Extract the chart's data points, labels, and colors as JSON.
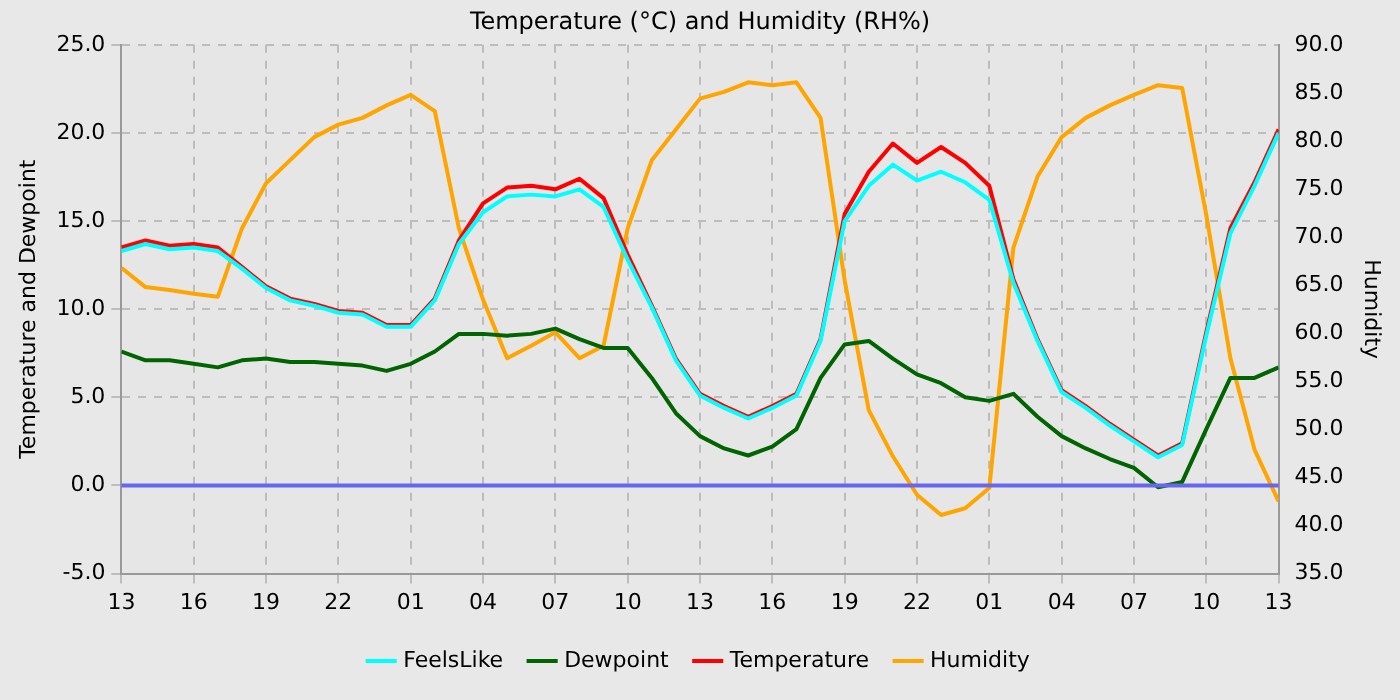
{
  "chart_data": {
    "type": "line",
    "title": "Temperature (°C) and Humidity (RH%)",
    "ylabel": "Temperature and Dewpoint",
    "y2label": "Humidity",
    "x": [
      "--01-01T13:00",
      "--01-01T14:00",
      "--01-01T15:00",
      "--01-01T16:00",
      "--01-01T17:00",
      "--01-01T18:00",
      "--01-01T19:00",
      "--01-01T20:00",
      "--01-01T21:00",
      "--01-01T22:00",
      "--01-01T23:00",
      "--01-02T00:00",
      "--01-02T01:00",
      "--01-02T02:00",
      "--01-02T03:00",
      "--01-02T04:00",
      "--01-02T05:00",
      "--01-02T06:00",
      "--01-02T07:00",
      "--01-02T08:00",
      "--01-02T09:00",
      "--01-02T10:00",
      "--01-02T11:00",
      "--01-02T12:00",
      "--01-02T13:00",
      "--01-02T14:00",
      "--01-02T15:00",
      "--01-02T16:00",
      "--01-02T17:00",
      "--01-02T18:00",
      "--01-02T19:00",
      "--01-02T20:00",
      "--01-02T21:00",
      "--01-02T22:00",
      "--01-02T23:00",
      "--01-03T00:00",
      "--01-03T01:00",
      "--01-03T02:00",
      "--01-03T03:00",
      "--01-03T04:00",
      "--01-03T05:00",
      "--01-03T06:00",
      "--01-03T07:00",
      "--01-03T08:00",
      "--01-03T09:00",
      "--01-03T10:00",
      "--01-03T11:00",
      "--01-03T12:00",
      "--01-03T13:00"
    ],
    "series": [
      {
        "name": "FeelsLike",
        "color": "#00ffff",
        "values": [
          13.3,
          13.7,
          13.4,
          13.5,
          13.3,
          12.3,
          11.2,
          10.5,
          10.2,
          9.8,
          9.7,
          9.0,
          9.0,
          10.5,
          13.7,
          15.5,
          16.4,
          16.5,
          16.4,
          16.8,
          15.8,
          12.8,
          10.1,
          7.1,
          5.1,
          4.4,
          3.8,
          4.4,
          5.1,
          8.2,
          15.0,
          17.0,
          18.2,
          17.3,
          17.8,
          17.2,
          16.2,
          11.5,
          8.2,
          5.3,
          4.4,
          3.4,
          2.5,
          1.6,
          2.3,
          8.5,
          14.3,
          17.0,
          20.0
        ]
      },
      {
        "name": "Dewpoint",
        "color": "#006400",
        "values": [
          7.6,
          7.1,
          7.1,
          6.9,
          6.7,
          7.1,
          7.2,
          7.0,
          7.0,
          6.9,
          6.8,
          6.5,
          6.9,
          7.6,
          8.6,
          8.6,
          8.5,
          8.6,
          8.9,
          8.3,
          7.8,
          7.8,
          6.1,
          4.1,
          2.8,
          2.1,
          1.7,
          2.2,
          3.2,
          6.1,
          8.0,
          8.2,
          7.2,
          6.3,
          5.8,
          5.0,
          4.8,
          5.2,
          3.9,
          2.8,
          2.1,
          1.5,
          1.0,
          -0.1,
          0.2,
          3.2,
          6.1,
          6.1,
          6.7
        ]
      },
      {
        "name": "Temperature",
        "color": "#ff0000",
        "values": [
          13.5,
          13.9,
          13.6,
          13.7,
          13.5,
          12.4,
          11.3,
          10.6,
          10.3,
          9.9,
          9.8,
          9.1,
          9.1,
          10.6,
          13.9,
          16.0,
          16.9,
          17.0,
          16.8,
          17.4,
          16.3,
          13.1,
          10.2,
          7.2,
          5.2,
          4.5,
          3.9,
          4.5,
          5.2,
          8.3,
          15.4,
          17.8,
          19.4,
          18.3,
          19.2,
          18.3,
          17.0,
          11.7,
          8.3,
          5.4,
          4.5,
          3.5,
          2.6,
          1.7,
          2.4,
          8.7,
          14.6,
          17.2,
          20.2
        ]
      },
      {
        "name": "Humidity",
        "color": "#ffa500",
        "axis": "y2",
        "values": [
          66.8,
          64.8,
          64.5,
          64.1,
          63.8,
          70.9,
          75.6,
          78.0,
          80.4,
          81.7,
          82.4,
          83.7,
          84.8,
          83.1,
          70.9,
          63.5,
          57.4,
          58.7,
          60.1,
          57.4,
          58.7,
          70.9,
          78.0,
          81.2,
          84.4,
          85.1,
          86.1,
          85.8,
          86.1,
          82.4,
          65.5,
          52.0,
          47.2,
          43.2,
          41.1,
          41.8,
          43.9,
          68.9,
          76.3,
          80.4,
          82.4,
          83.7,
          84.8,
          85.8,
          85.5,
          72.3,
          57.4,
          47.9,
          42.5
        ]
      }
    ],
    "xlim": [
      "--01-01T13:00",
      "--01-03T13:00"
    ],
    "xticks": [
      {
        "value": "--01-01T13:00",
        "label": "13"
      },
      {
        "value": "--01-01T16:00",
        "label": "16"
      },
      {
        "value": "--01-01T19:00",
        "label": "19"
      },
      {
        "value": "--01-01T22:00",
        "label": "22"
      },
      {
        "value": "--01-02T01:00",
        "label": "01"
      },
      {
        "value": "--01-02T04:00",
        "label": "04"
      },
      {
        "value": "--01-02T07:00",
        "label": "07"
      },
      {
        "value": "--01-02T10:00",
        "label": "10"
      },
      {
        "value": "--01-02T13:00",
        "label": "13"
      },
      {
        "value": "--01-02T16:00",
        "label": "16"
      },
      {
        "value": "--01-02T19:00",
        "label": "19"
      },
      {
        "value": "--01-02T22:00",
        "label": "22"
      },
      {
        "value": "--01-03T01:00",
        "label": "01"
      },
      {
        "value": "--01-03T04:00",
        "label": "04"
      },
      {
        "value": "--01-03T07:00",
        "label": "07"
      },
      {
        "value": "--01-03T10:00",
        "label": "10"
      },
      {
        "value": "--01-03T13:00",
        "label": "13"
      }
    ],
    "ylim": [
      -5,
      25
    ],
    "yticks": [
      {
        "value": -5,
        "label": "-5.0"
      },
      {
        "value": 0,
        "label": "0.0"
      },
      {
        "value": 5,
        "label": "5.0"
      },
      {
        "value": 10,
        "label": "10.0"
      },
      {
        "value": 15,
        "label": "15.0"
      },
      {
        "value": 20,
        "label": "20.0"
      },
      {
        "value": 25,
        "label": "25.0"
      }
    ],
    "y2lim": [
      35,
      90
    ],
    "y2ticks": [
      {
        "value": 35,
        "label": "35.0"
      },
      {
        "value": 40,
        "label": "40.0"
      },
      {
        "value": 45,
        "label": "45.0"
      },
      {
        "value": 50,
        "label": "50.0"
      },
      {
        "value": 55,
        "label": "55.0"
      },
      {
        "value": 60,
        "label": "60.0"
      },
      {
        "value": 65,
        "label": "65.0"
      },
      {
        "value": 70,
        "label": "70.0"
      },
      {
        "value": 75,
        "label": "75.0"
      },
      {
        "value": 80,
        "label": "80.0"
      },
      {
        "value": 85,
        "label": "85.0"
      },
      {
        "value": 90,
        "label": "90.0"
      }
    ],
    "ref_lines": [
      {
        "axis": "y",
        "value": 0,
        "color": "#6666ee"
      }
    ],
    "grid": true,
    "legend": "bottom",
    "marker": "none",
    "line_style": "solid"
  }
}
